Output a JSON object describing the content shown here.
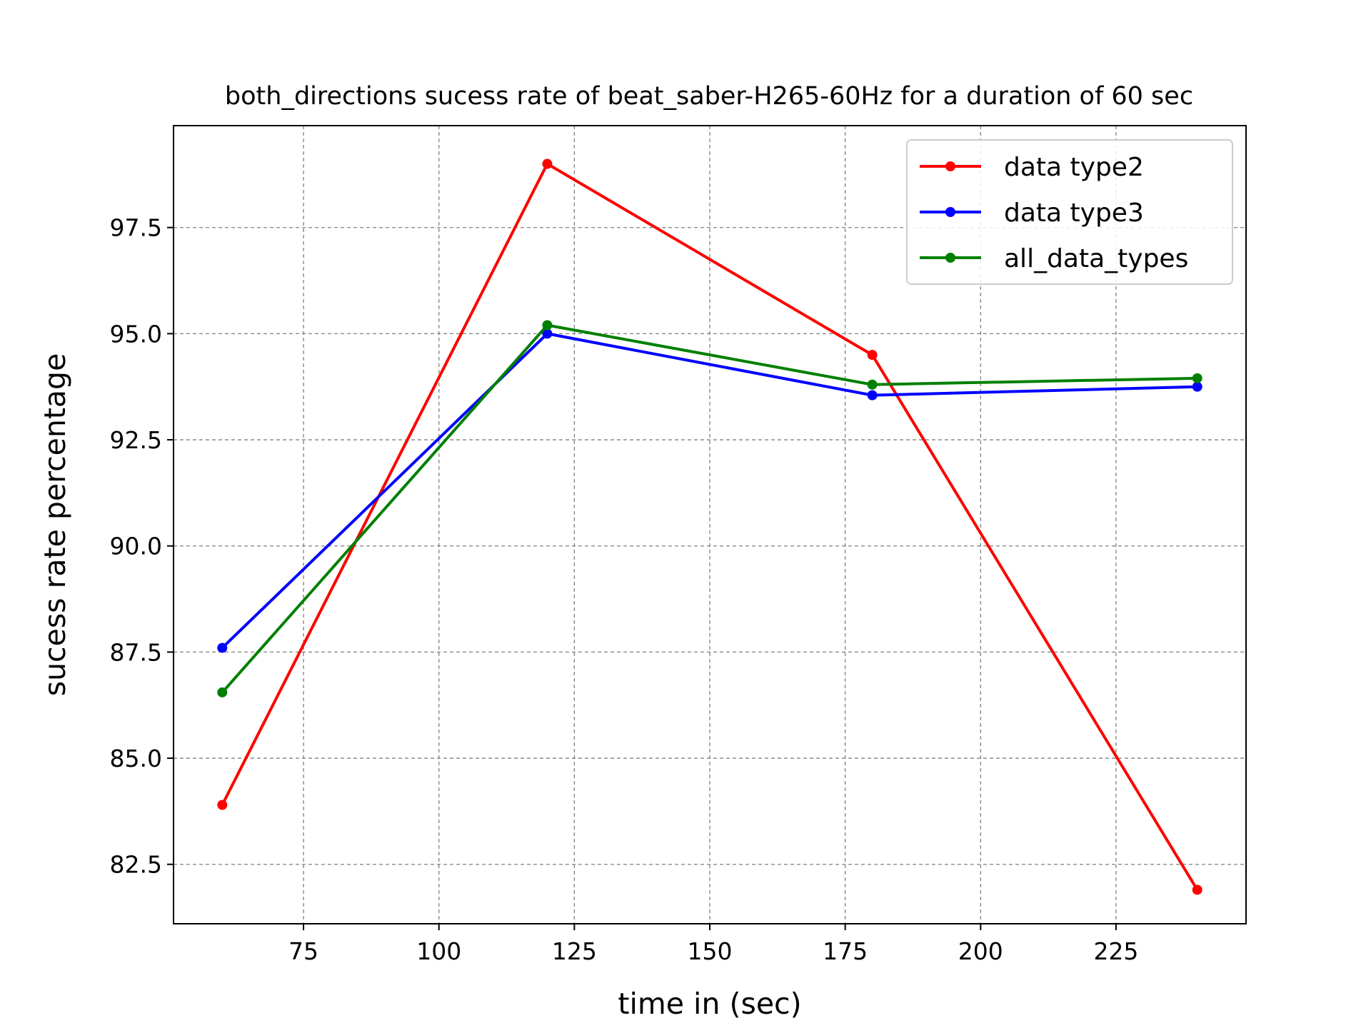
{
  "chart_data": {
    "type": "line",
    "title": "both_directions sucess rate of beat_saber-H265-60Hz for a duration of 60 sec",
    "xlabel": "time in (sec)",
    "ylabel": "sucess rate percentage",
    "x": [
      60,
      120,
      180,
      240
    ],
    "xlim": [
      51,
      249
    ],
    "ylim": [
      81.1,
      99.9
    ],
    "xticks": [
      75,
      100,
      125,
      150,
      175,
      200,
      225
    ],
    "xtick_labels": [
      "75",
      "100",
      "125",
      "150",
      "175",
      "200",
      "225"
    ],
    "yticks": [
      82.5,
      85.0,
      87.5,
      90.0,
      92.5,
      95.0,
      97.5
    ],
    "ytick_labels": [
      "82.5",
      "85.0",
      "87.5",
      "90.0",
      "92.5",
      "95.0",
      "97.5"
    ],
    "grid": true,
    "grid_style": "dashed",
    "legend_position": "top-right",
    "series": [
      {
        "name": "data type2",
        "color": "#ff0000",
        "values": [
          83.9,
          99.0,
          94.5,
          81.9
        ]
      },
      {
        "name": "data type3",
        "color": "#0000ff",
        "values": [
          87.6,
          95.0,
          93.55,
          93.75
        ]
      },
      {
        "name": "all_data_types",
        "color": "#008000",
        "values": [
          86.55,
          95.2,
          93.8,
          93.95
        ]
      }
    ]
  }
}
